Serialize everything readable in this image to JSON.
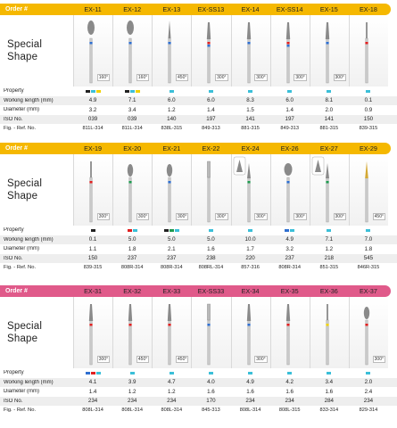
{
  "colors": {
    "header_yellow": "#f5b800",
    "header_pink": "#e05a8a",
    "blue": "#2f6fd0",
    "red": "#e02020",
    "green": "#1f9a4f",
    "yellow": "#f0d200",
    "black": "#222222",
    "cyan": "#3bbfd8"
  },
  "sections": [
    {
      "header_color": "#f5b800",
      "order_label": "Order #",
      "title_lines": [
        "Special",
        "Shape"
      ],
      "labels": {
        "property": "Property",
        "working_length": "Working length (mm)",
        "diameter": "Diameter (mm)",
        "iso": "ISO No.",
        "ref": "Fig. - Ref. No."
      },
      "products": [
        {
          "code": "EX-11",
          "rpm": "160°",
          "bands": [
            "blue"
          ],
          "property": [
            "black",
            "cyan",
            "yellow"
          ],
          "working_length": "4.9",
          "diameter": "3.2",
          "iso": "039",
          "ref": "811L-314",
          "shape": "flame"
        },
        {
          "code": "EX-12",
          "rpm": "160°",
          "bands": [
            "blue"
          ],
          "property": [
            "black",
            "cyan",
            "yellow"
          ],
          "working_length": "7.1",
          "diameter": "3.4",
          "iso": "039",
          "ref": "811L-314",
          "shape": "flame"
        },
        {
          "code": "EX-13",
          "rpm": "450°",
          "bands": [
            "blue"
          ],
          "property": [
            "cyan"
          ],
          "working_length": "6.0",
          "diameter": "1.2",
          "iso": "140",
          "ref": "838L-315",
          "shape": "needle"
        },
        {
          "code": "EX-SS13",
          "rpm": "300°",
          "bands": [
            "red",
            "blue"
          ],
          "property": [
            "cyan"
          ],
          "working_length": "6.0",
          "diameter": "1.4",
          "iso": "197",
          "ref": "849-313",
          "shape": "taper"
        },
        {
          "code": "EX-14",
          "rpm": "300°",
          "bands": [
            "blue"
          ],
          "property": [
            "cyan"
          ],
          "working_length": "8.3",
          "diameter": "1.5",
          "iso": "141",
          "ref": "881-315",
          "shape": "taper"
        },
        {
          "code": "EX-SS14",
          "rpm": "300°",
          "bands": [
            "red",
            "blue"
          ],
          "property": [
            "cyan"
          ],
          "working_length": "6.0",
          "diameter": "1.4",
          "iso": "197",
          "ref": "849-313",
          "shape": "taper"
        },
        {
          "code": "EX-15",
          "rpm": "300°",
          "bands": [
            "blue"
          ],
          "property": [
            "cyan"
          ],
          "working_length": "8.1",
          "diameter": "2.0",
          "iso": "141",
          "ref": "881-315",
          "shape": "taper"
        },
        {
          "code": "EX-18",
          "rpm": "",
          "bands": [
            "red"
          ],
          "property": [
            "cyan"
          ],
          "working_length": "0.1",
          "diameter": "0.9",
          "iso": "150",
          "ref": "839-315",
          "shape": "thin"
        }
      ]
    },
    {
      "header_color": "#f5b800",
      "order_label": "Order #",
      "title_lines": [
        "Special",
        "Shape"
      ],
      "labels": {
        "property": "Property",
        "working_length": "Working length (mm)",
        "diameter": "Diameter (mm)",
        "iso": "ISO No.",
        "ref": "Fig. - Ref. No."
      },
      "products": [
        {
          "code": "EX-19",
          "rpm": "300°",
          "bands": [
            "red"
          ],
          "property": [
            "black"
          ],
          "working_length": "0.1",
          "diameter": "1.1",
          "iso": "150",
          "ref": "839-315",
          "shape": "thin"
        },
        {
          "code": "EX-20",
          "rpm": "300°",
          "bands": [
            "green"
          ],
          "property": [
            "red",
            "cyan"
          ],
          "working_length": "5.0",
          "diameter": "1.8",
          "iso": "237",
          "ref": "808R-314",
          "shape": "round"
        },
        {
          "code": "EX-21",
          "rpm": "300°",
          "bands": [
            "blue"
          ],
          "property": [
            "black",
            "green",
            "cyan"
          ],
          "working_length": "5.0",
          "diameter": "2.1",
          "iso": "237",
          "ref": "808R-314",
          "shape": "round"
        },
        {
          "code": "EX-22",
          "rpm": "300°",
          "bands": [],
          "property": [
            "cyan"
          ],
          "working_length": "5.0",
          "diameter": "1.6",
          "iso": "238",
          "ref": "808RL-314",
          "shape": "flat"
        },
        {
          "code": "EX-24",
          "rpm": "300°",
          "bands": [
            "green"
          ],
          "property": [
            "cyan"
          ],
          "working_length": "10.0",
          "diameter": "1.7",
          "iso": "220",
          "ref": "857-316",
          "shape": "cone"
        },
        {
          "code": "EX-26",
          "rpm": "300°",
          "bands": [
            "blue"
          ],
          "property": [
            "blue",
            "cyan"
          ],
          "working_length": "4.9",
          "diameter": "3.2",
          "iso": "237",
          "ref": "808R-314",
          "shape": "egg"
        },
        {
          "code": "EX-27",
          "rpm": "300°",
          "bands": [
            "green"
          ],
          "property": [
            "cyan"
          ],
          "working_length": "7.1",
          "diameter": "1.2",
          "iso": "218",
          "ref": "851-315",
          "shape": "cone"
        },
        {
          "code": "EX-29",
          "rpm": "450°",
          "bands": [],
          "property": [
            "cyan"
          ],
          "working_length": "7.0",
          "diameter": "1.8",
          "iso": "545",
          "ref": "846R-315",
          "shape": "gold"
        }
      ]
    },
    {
      "header_color": "#e05a8a",
      "order_label": "Order #",
      "title_lines": [
        "Special",
        "Shape"
      ],
      "labels": {
        "property": "Property",
        "working_length": "Working length (mm)",
        "diameter": "Diameter (mm)",
        "iso": "ISO No.",
        "ref": "Fig. - Ref. No."
      },
      "products": [
        {
          "code": "EX-31",
          "rpm": "300°",
          "bands": [
            "red"
          ],
          "property": [
            "blue",
            "red",
            "cyan"
          ],
          "working_length": "4.1",
          "diameter": "1.4",
          "iso": "234",
          "ref": "808L-314",
          "shape": "taper"
        },
        {
          "code": "EX-32",
          "rpm": "450°",
          "bands": [
            "red"
          ],
          "property": [
            "cyan"
          ],
          "working_length": "3.9",
          "diameter": "1.2",
          "iso": "234",
          "ref": "808L-314",
          "shape": "taper"
        },
        {
          "code": "EX-33",
          "rpm": "450°",
          "bands": [
            "red"
          ],
          "property": [
            "cyan"
          ],
          "working_length": "4.7",
          "diameter": "1.2",
          "iso": "234",
          "ref": "808L-314",
          "shape": "taper"
        },
        {
          "code": "EX-SS33",
          "rpm": "",
          "bands": [
            "blue"
          ],
          "property": [
            "cyan"
          ],
          "working_length": "4.0",
          "diameter": "1.6",
          "iso": "170",
          "ref": "845-313",
          "shape": "flat"
        },
        {
          "code": "EX-34",
          "rpm": "300°",
          "bands": [
            "blue"
          ],
          "property": [
            "cyan"
          ],
          "working_length": "4.9",
          "diameter": "1.6",
          "iso": "234",
          "ref": "808L-314",
          "shape": "taper"
        },
        {
          "code": "EX-35",
          "rpm": "",
          "bands": [
            "red"
          ],
          "property": [
            "cyan"
          ],
          "working_length": "4.2",
          "diameter": "1.6",
          "iso": "234",
          "ref": "808L-315",
          "shape": "taper"
        },
        {
          "code": "EX-36",
          "rpm": "",
          "bands": [
            "yellow"
          ],
          "property": [
            "cyan"
          ],
          "working_length": "3.4",
          "diameter": "1.6",
          "iso": "284",
          "ref": "833-314",
          "shape": "thin"
        },
        {
          "code": "EX-37",
          "rpm": "300°",
          "bands": [
            "red"
          ],
          "property": [
            "cyan"
          ],
          "working_length": "2.0",
          "diameter": "2.4",
          "iso": "234",
          "ref": "829-314",
          "shape": "round"
        }
      ]
    }
  ]
}
